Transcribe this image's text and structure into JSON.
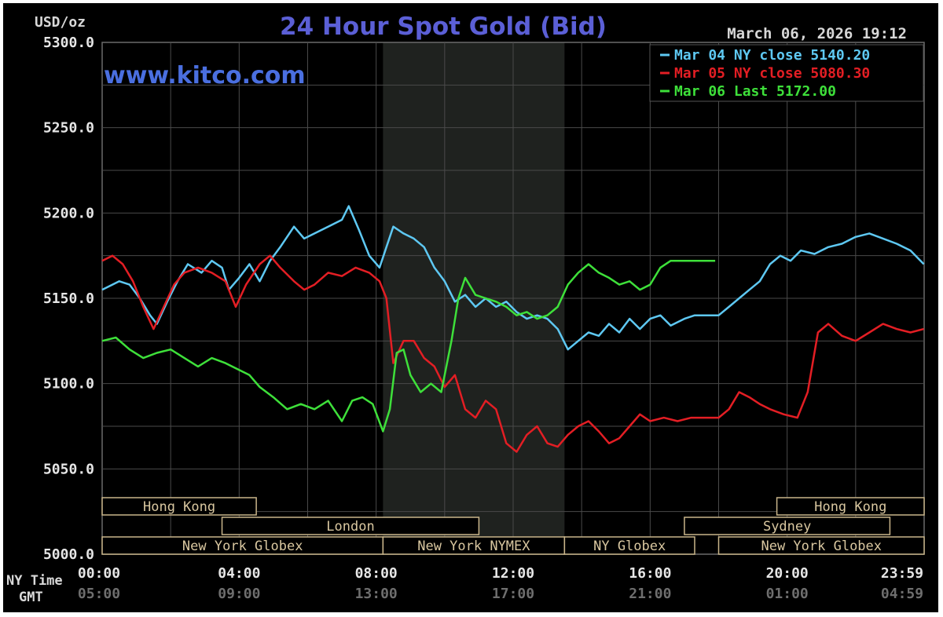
{
  "chart_data": {
    "type": "line",
    "title": "24 Hour Spot Gold (Bid)",
    "website": "www.kitco.com",
    "timestamp": "March 06, 2026 19:12",
    "y_unit_label": "USD/oz",
    "ylim": [
      5000.0,
      5300.0
    ],
    "y_ticks": [
      "5300.0",
      "5250.0",
      "5200.0",
      "5150.0",
      "5100.0",
      "5050.0",
      "5000.0"
    ],
    "xlim": [
      0,
      24
    ],
    "row_labels": {
      "ny": "NY Time",
      "gmt": "GMT"
    },
    "x_ticks_ny": [
      "00:00",
      "04:00",
      "08:00",
      "12:00",
      "16:00",
      "20:00",
      "23:59"
    ],
    "x_ticks_gmt": [
      "05:00",
      "09:00",
      "13:00",
      "17:00",
      "21:00",
      "01:00",
      "04:59"
    ],
    "grid": true,
    "legend_position": "top-right",
    "shaded_session_hours": [
      8.2,
      13.5
    ],
    "legend": [
      {
        "label": "Mar 04 NY close 5140.20",
        "color": "#5ec8f2"
      },
      {
        "label": "Mar 05 NY close 5080.30",
        "color": "#e31e24"
      },
      {
        "label": "Mar 06 Last 5172.00",
        "color": "#3ee03a"
      }
    ],
    "sessions": [
      {
        "name": "Hong Kong",
        "row": 0,
        "start": 0,
        "end": 4.5
      },
      {
        "name": "London",
        "row": 1,
        "start": 3.5,
        "end": 11.0
      },
      {
        "name": "New York Globex",
        "row": 2,
        "start": 0,
        "end": 8.2
      },
      {
        "name": "New York NYMEX",
        "row": 2,
        "start": 8.2,
        "end": 13.5
      },
      {
        "name": "NY Globex",
        "row": 2,
        "start": 13.5,
        "end": 17.3
      },
      {
        "name": "Hong Kong",
        "row": 0,
        "start": 19.7,
        "end": 24
      },
      {
        "name": "Sydney",
        "row": 1,
        "start": 17.0,
        "end": 23.0
      },
      {
        "name": "New York Globex",
        "row": 2,
        "start": 18.0,
        "end": 24
      }
    ],
    "series": [
      {
        "color": "#5ec8f2",
        "points": [
          [
            0,
            5155
          ],
          [
            0.5,
            5160
          ],
          [
            0.8,
            5158
          ],
          [
            1.1,
            5150
          ],
          [
            1.4,
            5140
          ],
          [
            1.6,
            5135
          ],
          [
            1.9,
            5148
          ],
          [
            2.2,
            5160
          ],
          [
            2.5,
            5170
          ],
          [
            2.9,
            5165
          ],
          [
            3.2,
            5172
          ],
          [
            3.5,
            5168
          ],
          [
            3.7,
            5155
          ],
          [
            4.0,
            5162
          ],
          [
            4.3,
            5170
          ],
          [
            4.6,
            5160
          ],
          [
            4.9,
            5172
          ],
          [
            5.2,
            5180
          ],
          [
            5.6,
            5192
          ],
          [
            5.9,
            5185
          ],
          [
            6.2,
            5188
          ],
          [
            6.6,
            5192
          ],
          [
            7.0,
            5196
          ],
          [
            7.2,
            5204
          ],
          [
            7.5,
            5190
          ],
          [
            7.8,
            5175
          ],
          [
            8.1,
            5168
          ],
          [
            8.3,
            5180
          ],
          [
            8.5,
            5192
          ],
          [
            8.8,
            5188
          ],
          [
            9.1,
            5185
          ],
          [
            9.4,
            5180
          ],
          [
            9.7,
            5168
          ],
          [
            10.0,
            5160
          ],
          [
            10.3,
            5148
          ],
          [
            10.6,
            5152
          ],
          [
            10.9,
            5145
          ],
          [
            11.2,
            5150
          ],
          [
            11.5,
            5145
          ],
          [
            11.8,
            5148
          ],
          [
            12.1,
            5142
          ],
          [
            12.4,
            5138
          ],
          [
            12.7,
            5140
          ],
          [
            13.0,
            5138
          ],
          [
            13.3,
            5132
          ],
          [
            13.6,
            5120
          ],
          [
            13.9,
            5125
          ],
          [
            14.2,
            5130
          ],
          [
            14.5,
            5128
          ],
          [
            14.8,
            5135
          ],
          [
            15.1,
            5130
          ],
          [
            15.4,
            5138
          ],
          [
            15.7,
            5132
          ],
          [
            16.0,
            5138
          ],
          [
            16.3,
            5140
          ],
          [
            16.6,
            5134
          ],
          [
            17.0,
            5138
          ],
          [
            17.3,
            5140
          ],
          [
            17.6,
            5140
          ],
          [
            18.0,
            5140
          ],
          [
            18.3,
            5145
          ],
          [
            18.6,
            5150
          ],
          [
            18.9,
            5155
          ],
          [
            19.2,
            5160
          ],
          [
            19.5,
            5170
          ],
          [
            19.8,
            5175
          ],
          [
            20.1,
            5172
          ],
          [
            20.4,
            5178
          ],
          [
            20.8,
            5176
          ],
          [
            21.2,
            5180
          ],
          [
            21.6,
            5182
          ],
          [
            22.0,
            5186
          ],
          [
            22.4,
            5188
          ],
          [
            22.8,
            5185
          ],
          [
            23.2,
            5182
          ],
          [
            23.6,
            5178
          ],
          [
            23.99,
            5170
          ]
        ]
      },
      {
        "color": "#e31e24",
        "points": [
          [
            0,
            5172
          ],
          [
            0.3,
            5175
          ],
          [
            0.6,
            5170
          ],
          [
            0.9,
            5160
          ],
          [
            1.2,
            5145
          ],
          [
            1.5,
            5132
          ],
          [
            1.8,
            5145
          ],
          [
            2.1,
            5158
          ],
          [
            2.4,
            5165
          ],
          [
            2.8,
            5168
          ],
          [
            3.2,
            5165
          ],
          [
            3.6,
            5160
          ],
          [
            3.9,
            5145
          ],
          [
            4.2,
            5158
          ],
          [
            4.6,
            5170
          ],
          [
            4.9,
            5175
          ],
          [
            5.2,
            5168
          ],
          [
            5.6,
            5160
          ],
          [
            5.9,
            5155
          ],
          [
            6.2,
            5158
          ],
          [
            6.6,
            5165
          ],
          [
            7.0,
            5163
          ],
          [
            7.4,
            5168
          ],
          [
            7.8,
            5165
          ],
          [
            8.1,
            5160
          ],
          [
            8.3,
            5150
          ],
          [
            8.5,
            5112
          ],
          [
            8.8,
            5125
          ],
          [
            9.1,
            5125
          ],
          [
            9.4,
            5115
          ],
          [
            9.7,
            5110
          ],
          [
            10.0,
            5098
          ],
          [
            10.3,
            5105
          ],
          [
            10.6,
            5085
          ],
          [
            10.9,
            5080
          ],
          [
            11.2,
            5090
          ],
          [
            11.5,
            5085
          ],
          [
            11.8,
            5065
          ],
          [
            12.1,
            5060
          ],
          [
            12.4,
            5070
          ],
          [
            12.7,
            5075
          ],
          [
            13.0,
            5065
          ],
          [
            13.3,
            5063
          ],
          [
            13.6,
            5070
          ],
          [
            13.9,
            5075
          ],
          [
            14.2,
            5078
          ],
          [
            14.5,
            5072
          ],
          [
            14.8,
            5065
          ],
          [
            15.1,
            5068
          ],
          [
            15.4,
            5075
          ],
          [
            15.7,
            5082
          ],
          [
            16.0,
            5078
          ],
          [
            16.4,
            5080
          ],
          [
            16.8,
            5078
          ],
          [
            17.2,
            5080
          ],
          [
            17.6,
            5080
          ],
          [
            18.0,
            5080
          ],
          [
            18.3,
            5085
          ],
          [
            18.6,
            5095
          ],
          [
            18.9,
            5092
          ],
          [
            19.2,
            5088
          ],
          [
            19.5,
            5085
          ],
          [
            19.9,
            5082
          ],
          [
            20.3,
            5080
          ],
          [
            20.6,
            5095
          ],
          [
            20.9,
            5130
          ],
          [
            21.2,
            5135
          ],
          [
            21.6,
            5128
          ],
          [
            22.0,
            5125
          ],
          [
            22.4,
            5130
          ],
          [
            22.8,
            5135
          ],
          [
            23.2,
            5132
          ],
          [
            23.6,
            5130
          ],
          [
            23.99,
            5132
          ]
        ]
      },
      {
        "color": "#3ee03a",
        "points": [
          [
            0,
            5125
          ],
          [
            0.4,
            5127
          ],
          [
            0.8,
            5120
          ],
          [
            1.2,
            5115
          ],
          [
            1.6,
            5118
          ],
          [
            2.0,
            5120
          ],
          [
            2.4,
            5115
          ],
          [
            2.8,
            5110
          ],
          [
            3.2,
            5115
          ],
          [
            3.6,
            5112
          ],
          [
            4.0,
            5108
          ],
          [
            4.3,
            5105
          ],
          [
            4.6,
            5098
          ],
          [
            5.0,
            5092
          ],
          [
            5.4,
            5085
          ],
          [
            5.8,
            5088
          ],
          [
            6.2,
            5085
          ],
          [
            6.6,
            5090
          ],
          [
            7.0,
            5078
          ],
          [
            7.3,
            5090
          ],
          [
            7.6,
            5092
          ],
          [
            7.9,
            5088
          ],
          [
            8.2,
            5072
          ],
          [
            8.4,
            5085
          ],
          [
            8.6,
            5118
          ],
          [
            8.8,
            5120
          ],
          [
            9.0,
            5105
          ],
          [
            9.3,
            5095
          ],
          [
            9.6,
            5100
          ],
          [
            9.9,
            5095
          ],
          [
            10.2,
            5125
          ],
          [
            10.4,
            5150
          ],
          [
            10.6,
            5162
          ],
          [
            10.9,
            5152
          ],
          [
            11.2,
            5150
          ],
          [
            11.5,
            5148
          ],
          [
            11.8,
            5145
          ],
          [
            12.1,
            5140
          ],
          [
            12.4,
            5142
          ],
          [
            12.7,
            5138
          ],
          [
            13.0,
            5140
          ],
          [
            13.3,
            5145
          ],
          [
            13.6,
            5158
          ],
          [
            13.9,
            5165
          ],
          [
            14.2,
            5170
          ],
          [
            14.5,
            5165
          ],
          [
            14.8,
            5162
          ],
          [
            15.1,
            5158
          ],
          [
            15.4,
            5160
          ],
          [
            15.7,
            5155
          ],
          [
            16.0,
            5158
          ],
          [
            16.3,
            5168
          ],
          [
            16.6,
            5172
          ],
          [
            17.0,
            5172
          ],
          [
            17.5,
            5172
          ],
          [
            17.9,
            5172
          ]
        ]
      }
    ]
  }
}
